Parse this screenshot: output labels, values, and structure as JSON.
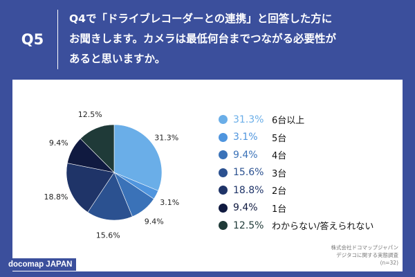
{
  "header": {
    "question_number": "Q5",
    "question_text": "Q4で「ドライブレコーダーとの連携」と回答した方に\nお聞きします。カメラは最低何台までつながる必要性が\nあると思いますか。"
  },
  "colors": {
    "header_bg": "#3b4f9c"
  },
  "chart_data": {
    "type": "pie",
    "title": "",
    "slices": [
      {
        "label": "6台以上",
        "value": 31.3,
        "display": "31.3%",
        "color": "#6aaee8"
      },
      {
        "label": "5台",
        "value": 3.1,
        "display": "3.1%",
        "color": "#4f95de"
      },
      {
        "label": "4台",
        "value": 9.4,
        "display": "9.4%",
        "color": "#3a72b8"
      },
      {
        "label": "3台",
        "value": 15.6,
        "display": "15.6%",
        "color": "#2b5190"
      },
      {
        "label": "2台",
        "value": 18.8,
        "display": "18.8%",
        "color": "#1f3468"
      },
      {
        "label": "1台",
        "value": 9.4,
        "display": "9.4%",
        "color": "#101a40"
      },
      {
        "label": "わからない/答えられない",
        "value": 12.5,
        "display": "12.5%",
        "color": "#1f3a38"
      }
    ],
    "start_angle_deg": 0,
    "direction": "clockwise",
    "legend_position": "right"
  },
  "source": {
    "text": "株式会社ドコマップジャパン\nデジタコに関する実態調査\n(n=32)"
  },
  "brand": {
    "label": "docomap JAPAN"
  }
}
